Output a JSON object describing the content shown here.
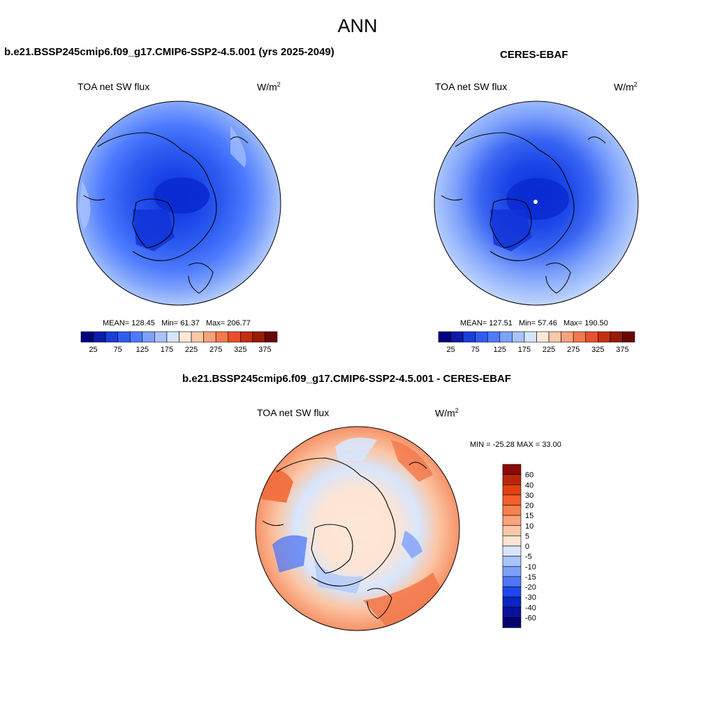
{
  "page": {
    "season": "ANN",
    "unit_main": "W/m",
    "unit_sup": "2"
  },
  "panels": [
    {
      "id": "model",
      "title": "b.e21.BSSP245cmip6.f09_g17.CMIP6-SSP2-4.5.001 (yrs 2025-2049)",
      "variable": "TOA net SW flux",
      "stats": {
        "mean": "MEAN= 128.45",
        "min": "Min=  61.37",
        "max": "Max= 206.77"
      }
    },
    {
      "id": "obs",
      "title": "CERES-EBAF",
      "variable": "TOA net SW flux",
      "stats": {
        "mean": "MEAN= 127.51",
        "min": "Min=  57.46",
        "max": "Max= 190.50"
      }
    },
    {
      "id": "diff",
      "title": "b.e21.BSSP245cmip6.f09_g17.CMIP6-SSP2-4.5.001 - CERES-EBAF",
      "variable": "TOA net SW flux",
      "range_text": "MIN = -25.28 MAX =  33.00"
    }
  ],
  "colorbar_main": {
    "tick_labels": [
      "25",
      "75",
      "125",
      "175",
      "225",
      "275",
      "325",
      "375"
    ],
    "colors": [
      "#00007f",
      "#0a1ca8",
      "#1a3fd6",
      "#2f5df0",
      "#4d7bff",
      "#7ea2fb",
      "#a9c3fb",
      "#d4e4fd",
      "#fde8d8",
      "#fbc8a8",
      "#f8a27a",
      "#f27a4e",
      "#e7502a",
      "#c42d12",
      "#981b05",
      "#6b0606"
    ]
  },
  "colorbar_diff": {
    "tick_labels": [
      "60",
      "40",
      "30",
      "20",
      "15",
      "10",
      "5",
      "0",
      "-5",
      "-10",
      "-15",
      "-20",
      "-30",
      "-40",
      "-60"
    ],
    "colors": [
      "#8b0a05",
      "#b82808",
      "#e2410f",
      "#f55f2b",
      "#f6814d",
      "#f9a37a",
      "#fbc6a5",
      "#fde4d4",
      "#d7e6fd",
      "#a9c4fb",
      "#7ea0f9",
      "#4f76f6",
      "#1f47f0",
      "#0a25c2",
      "#0c0f9c",
      "#04006e"
    ]
  }
}
